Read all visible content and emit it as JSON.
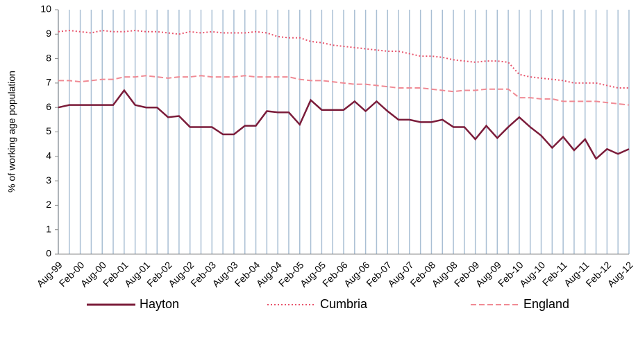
{
  "chart_data": {
    "type": "line",
    "y_label": "% of working age population",
    "categories": [
      "Aug-99",
      null,
      "Feb-00",
      null,
      "Aug-00",
      null,
      "Feb-01",
      null,
      "Aug-01",
      null,
      "Feb-02",
      null,
      "Aug-02",
      null,
      "Feb-03",
      null,
      "Aug-03",
      null,
      "Feb-04",
      null,
      "Aug-04",
      null,
      "Feb-05",
      null,
      "Aug-05",
      null,
      "Feb-06",
      null,
      "Aug-06",
      null,
      "Feb-07",
      null,
      "Aug-07",
      null,
      "Feb-08",
      null,
      "Aug-08",
      null,
      "Feb-09",
      null,
      "Aug-09",
      null,
      "Feb-10",
      null,
      "Aug-10",
      null,
      "Feb-11",
      null,
      "Aug-11",
      null,
      "Feb-12",
      null,
      "Aug-12"
    ],
    "series": [
      {
        "name": "Hayton",
        "color": "#7b1c3a",
        "style": "solid",
        "values": [
          6.0,
          6.1,
          6.1,
          6.1,
          6.1,
          6.1,
          6.7,
          6.1,
          6.0,
          6.0,
          5.6,
          5.65,
          5.2,
          5.2,
          5.2,
          4.9,
          4.9,
          5.25,
          5.25,
          5.85,
          5.8,
          5.8,
          5.3,
          6.3,
          5.9,
          5.9,
          5.9,
          6.25,
          5.85,
          6.25,
          5.85,
          5.5,
          5.5,
          5.4,
          5.4,
          5.5,
          5.2,
          5.2,
          4.7,
          5.25,
          4.75,
          5.2,
          5.6,
          5.2,
          4.85,
          4.35,
          4.8,
          4.25,
          4.7,
          3.9,
          4.3,
          4.1,
          4.3
        ]
      },
      {
        "name": "Cumbria",
        "color": "#e8536b",
        "style": "dotted",
        "values": [
          9.1,
          9.15,
          9.1,
          9.05,
          9.15,
          9.1,
          9.1,
          9.15,
          9.1,
          9.1,
          9.05,
          9.0,
          9.1,
          9.05,
          9.1,
          9.05,
          9.05,
          9.05,
          9.1,
          9.05,
          8.9,
          8.85,
          8.85,
          8.7,
          8.65,
          8.55,
          8.5,
          8.45,
          8.4,
          8.35,
          8.3,
          8.3,
          8.2,
          8.1,
          8.1,
          8.05,
          7.95,
          7.9,
          7.85,
          7.9,
          7.9,
          7.85,
          7.35,
          7.25,
          7.2,
          7.15,
          7.1,
          7.0,
          7.0,
          7.0,
          6.9,
          6.8,
          6.8
        ]
      },
      {
        "name": "England",
        "color": "#f08a94",
        "style": "dashed",
        "values": [
          7.1,
          7.1,
          7.05,
          7.1,
          7.15,
          7.15,
          7.25,
          7.25,
          7.3,
          7.25,
          7.2,
          7.25,
          7.25,
          7.3,
          7.25,
          7.25,
          7.25,
          7.3,
          7.25,
          7.25,
          7.25,
          7.25,
          7.15,
          7.1,
          7.1,
          7.05,
          7.0,
          6.95,
          6.95,
          6.9,
          6.85,
          6.8,
          6.8,
          6.8,
          6.75,
          6.7,
          6.65,
          6.7,
          6.7,
          6.75,
          6.75,
          6.75,
          6.4,
          6.4,
          6.35,
          6.35,
          6.25,
          6.25,
          6.25,
          6.25,
          6.2,
          6.15,
          6.1
        ]
      }
    ],
    "ylim": [
      0,
      10
    ],
    "yticks": [
      0,
      1,
      2,
      3,
      4,
      5,
      6,
      7,
      8,
      9,
      10
    ],
    "grid": "x",
    "grid_color": "#a9bfd4",
    "legend": "bottom"
  }
}
